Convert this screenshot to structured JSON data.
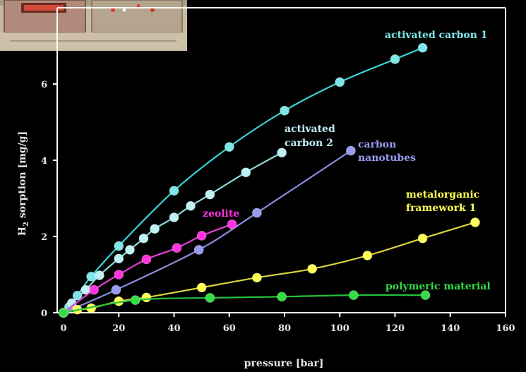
{
  "photo": {
    "icon": "lab-instrument-photo"
  },
  "chart_data": {
    "type": "line",
    "xlabel": "pressure [bar]",
    "ylabel_main": "H",
    "ylabel_sub": "2",
    "ylabel_rest": " sorption [mg/g]",
    "xlim": [
      0,
      160
    ],
    "ylim": [
      0,
      7.5
    ],
    "xticks": [
      0,
      20,
      40,
      60,
      80,
      100,
      120,
      140,
      160
    ],
    "yticks": [
      0,
      2,
      4,
      6
    ],
    "grid": false,
    "background": "#000000",
    "axis_color": "#ffffff",
    "series": [
      {
        "name": "activated carbon 1",
        "label_lines": [
          "activated carbon 1"
        ],
        "color": "#39d3d6",
        "marker": "#7fe6ea",
        "points": [
          [
            0,
            0
          ],
          [
            2,
            0.15
          ],
          [
            5,
            0.45
          ],
          [
            10,
            0.95
          ],
          [
            20,
            1.75
          ],
          [
            40,
            3.2
          ],
          [
            60,
            4.35
          ],
          [
            80,
            5.3
          ],
          [
            100,
            6.05
          ],
          [
            120,
            6.65
          ],
          [
            130,
            6.95
          ]
        ]
      },
      {
        "name": "activated carbon 2",
        "label_lines": [
          "activated",
          "carbon 2"
        ],
        "color": "#8fd8e0",
        "marker": "#bff0f4",
        "points": [
          [
            0,
            0
          ],
          [
            3,
            0.25
          ],
          [
            8,
            0.6
          ],
          [
            13,
            0.98
          ],
          [
            20,
            1.42
          ],
          [
            24,
            1.65
          ],
          [
            29,
            1.95
          ],
          [
            33,
            2.2
          ],
          [
            40,
            2.5
          ],
          [
            46,
            2.8
          ],
          [
            53,
            3.1
          ],
          [
            66,
            3.68
          ],
          [
            79,
            4.2
          ]
        ]
      },
      {
        "name": "carbon nanotubes",
        "label_lines": [
          "carbon",
          "nanotubes"
        ],
        "color": "#8a8ce0",
        "marker": "#9a9cf0",
        "points": [
          [
            0,
            0
          ],
          [
            19,
            0.6
          ],
          [
            49,
            1.65
          ],
          [
            70,
            2.62
          ],
          [
            104,
            4.25
          ]
        ]
      },
      {
        "name": "zeolite",
        "label_lines": [
          "zeolite"
        ],
        "color": "#e23fd6",
        "marker": "#ff33e0",
        "points": [
          [
            0,
            0
          ],
          [
            11,
            0.6
          ],
          [
            20,
            1.0
          ],
          [
            30,
            1.4
          ],
          [
            41,
            1.7
          ],
          [
            50,
            2.02
          ],
          [
            61,
            2.32
          ]
        ]
      },
      {
        "name": "metalorganic framework 1",
        "label_lines": [
          "metalorganic",
          "framework 1"
        ],
        "color": "#d8d23a",
        "marker": "#ffff55",
        "points": [
          [
            0,
            0
          ],
          [
            5,
            0.08
          ],
          [
            10,
            0.12
          ],
          [
            20,
            0.3
          ],
          [
            30,
            0.4
          ],
          [
            50,
            0.66
          ],
          [
            70,
            0.92
          ],
          [
            90,
            1.15
          ],
          [
            110,
            1.5
          ],
          [
            130,
            1.95
          ],
          [
            149,
            2.37
          ]
        ]
      },
      {
        "name": "polymeric material",
        "label_lines": [
          "polymeric material"
        ],
        "color": "#22c23a",
        "marker": "#33dd44",
        "points": [
          [
            0,
            0
          ],
          [
            26,
            0.33
          ],
          [
            53,
            0.39
          ],
          [
            79,
            0.42
          ],
          [
            105,
            0.46
          ],
          [
            131,
            0.46
          ]
        ]
      }
    ]
  }
}
